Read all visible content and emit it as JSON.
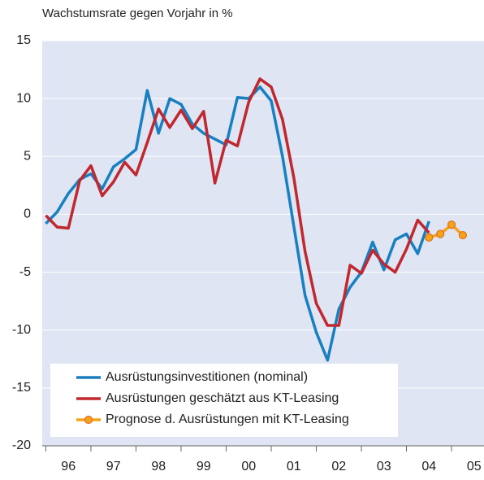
{
  "chart_data": {
    "type": "line",
    "title": "Wachstumsrate gegen Vorjahr in %",
    "xlim": [
      1995.92,
      2005.72
    ],
    "xticks": [
      {
        "value": 1996.5,
        "label": "96"
      },
      {
        "value": 1997.5,
        "label": "97"
      },
      {
        "value": 1998.5,
        "label": "98"
      },
      {
        "value": 1999.5,
        "label": "99"
      },
      {
        "value": 2000.5,
        "label": "00"
      },
      {
        "value": 2001.5,
        "label": "01"
      },
      {
        "value": 2002.5,
        "label": "02"
      },
      {
        "value": 2003.5,
        "label": "03"
      },
      {
        "value": 2004.5,
        "label": "04"
      },
      {
        "value": 2005.5,
        "label": "05"
      }
    ],
    "ylim": [
      -20,
      15
    ],
    "yticks": [
      -20,
      -15,
      -10,
      -5,
      0,
      5,
      10,
      15
    ],
    "grid": true,
    "legend": "bottom-left",
    "series": [
      {
        "name": "Ausrüstungsinvestitionen (nominal)",
        "color": "#1a7fc1",
        "x": [
          1996,
          1996.25,
          1996.5,
          1996.75,
          1997,
          1997.25,
          1997.5,
          1997.75,
          1998,
          1998.25,
          1998.5,
          1998.75,
          1999,
          1999.25,
          1999.5,
          1999.75,
          2000,
          2000.25,
          2000.5,
          2000.75,
          2001,
          2001.25,
          2001.5,
          2001.75,
          2002,
          2002.25,
          2002.5,
          2002.75,
          2003,
          2003.25,
          2003.5,
          2003.75,
          2004,
          2004.25,
          2004.5
        ],
        "values": [
          -0.8,
          0.2,
          1.8,
          3.0,
          3.5,
          2.2,
          4.1,
          4.8,
          5.6,
          10.7,
          7.0,
          10.0,
          9.5,
          7.8,
          7.0,
          6.5,
          6.0,
          10.1,
          10.0,
          11.0,
          9.8,
          5.0,
          -1.0,
          -7.0,
          -10.2,
          -12.6,
          -8.2,
          -6.3,
          -5.0,
          -2.4,
          -4.8,
          -2.2,
          -1.7,
          -3.4,
          -0.6
        ]
      },
      {
        "name": "Ausrüstungen geschätzt aus KT-Leasing",
        "color": "#c0282f",
        "x": [
          1996,
          1996.25,
          1996.5,
          1996.75,
          1997,
          1997.25,
          1997.5,
          1997.75,
          1998,
          1998.25,
          1998.5,
          1998.75,
          1999,
          1999.25,
          1999.5,
          1999.75,
          2000,
          2000.25,
          2000.5,
          2000.75,
          2001,
          2001.25,
          2001.5,
          2001.75,
          2002,
          2002.25,
          2002.5,
          2002.75,
          2003,
          2003.25,
          2003.5,
          2003.75,
          2004,
          2004.25,
          2004.5
        ],
        "values": [
          -0.1,
          -1.1,
          -1.2,
          2.9,
          4.2,
          1.6,
          2.8,
          4.5,
          3.4,
          6.2,
          9.1,
          7.5,
          9.0,
          7.4,
          8.9,
          2.7,
          6.4,
          5.9,
          9.7,
          11.7,
          11.0,
          8.2,
          3.2,
          -3.2,
          -7.7,
          -9.6,
          -9.6,
          -4.4,
          -5.1,
          -3.1,
          -4.3,
          -5.0,
          -3.0,
          -0.5,
          -1.6
        ]
      },
      {
        "name": "Prognose d. Ausrüstungen mit KT-Leasing",
        "color": "#f5a21c",
        "marker": "circle",
        "x": [
          2004.5,
          2004.75,
          2005,
          2005.25
        ],
        "values": [
          -2.0,
          -1.7,
          -0.9,
          -1.8
        ]
      }
    ]
  }
}
